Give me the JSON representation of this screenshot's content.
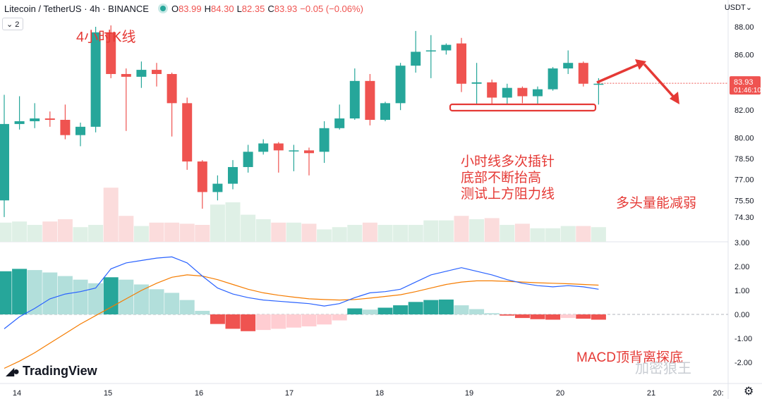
{
  "header": {
    "symbol_line": "Litecoin / TetherUS · 4h · BINANCE",
    "open_key": "O",
    "open": "83.99",
    "high_key": "H",
    "high": "84.30",
    "low_key": "L",
    "low": "82.35",
    "close_key": "C",
    "close": "83.93",
    "change": "−0.05 (−0.06%)"
  },
  "indicator_badge": "⌄ 2",
  "currency": "USDT⌄",
  "price_tag": {
    "price": "83.93",
    "countdown": "01:46:10"
  },
  "annotations": {
    "timeframe_note": "4小时K线",
    "pin_note_lines": [
      "小时线多次插针",
      "底部不断抬高",
      "测试上方阻力线"
    ],
    "volume_note": "多头量能减弱",
    "macd_note": "MACD顶背离探底"
  },
  "branding": {
    "logo": "TradingView",
    "watermark": "加密狼王"
  },
  "icons": {
    "logo_mark": "tradingview-logo-icon",
    "settings": "gear-icon"
  },
  "colors": {
    "up": "#26a69a",
    "down": "#ef5350",
    "macd_line": "#2962ff",
    "signal_line": "#f57c00",
    "annotation": "#e53935"
  },
  "chart_data": [
    {
      "type": "candlestick",
      "title": "Litecoin / TetherUS · 4h · BINANCE",
      "x_ticks": [
        "14",
        "15",
        "16",
        "17",
        "18",
        "19",
        "20",
        "21",
        "20:"
      ],
      "y_ticks": [
        "88.00",
        "86.00",
        "82.00",
        "80.00",
        "78.50",
        "77.00",
        "75.50",
        "74.30"
      ],
      "last_price": 83.93,
      "candles": [
        {
          "o": 75.5,
          "h": 83.1,
          "l": 74.3,
          "c": 81.0
        },
        {
          "o": 81.0,
          "h": 83.0,
          "l": 80.6,
          "c": 81.2
        },
        {
          "o": 81.2,
          "h": 82.5,
          "l": 80.7,
          "c": 81.4
        },
        {
          "o": 81.4,
          "h": 81.9,
          "l": 80.8,
          "c": 81.3
        },
        {
          "o": 81.3,
          "h": 82.4,
          "l": 79.9,
          "c": 80.2
        },
        {
          "o": 80.2,
          "h": 81.1,
          "l": 79.4,
          "c": 80.8
        },
        {
          "o": 80.8,
          "h": 88.0,
          "l": 80.4,
          "c": 87.6
        },
        {
          "o": 87.6,
          "h": 88.1,
          "l": 84.3,
          "c": 84.6
        },
        {
          "o": 84.6,
          "h": 85.0,
          "l": 80.5,
          "c": 84.4
        },
        {
          "o": 84.4,
          "h": 85.5,
          "l": 83.6,
          "c": 84.9
        },
        {
          "o": 84.9,
          "h": 85.4,
          "l": 83.7,
          "c": 84.6
        },
        {
          "o": 84.6,
          "h": 84.7,
          "l": 80.1,
          "c": 82.5
        },
        {
          "o": 82.5,
          "h": 82.9,
          "l": 77.7,
          "c": 78.3
        },
        {
          "o": 78.3,
          "h": 78.4,
          "l": 74.9,
          "c": 76.1
        },
        {
          "o": 76.1,
          "h": 77.3,
          "l": 75.5,
          "c": 76.7
        },
        {
          "o": 76.7,
          "h": 78.4,
          "l": 76.3,
          "c": 77.9
        },
        {
          "o": 77.9,
          "h": 79.5,
          "l": 77.5,
          "c": 79.0
        },
        {
          "o": 79.0,
          "h": 79.9,
          "l": 78.8,
          "c": 79.6
        },
        {
          "o": 79.6,
          "h": 79.7,
          "l": 77.5,
          "c": 79.1
        },
        {
          "o": 79.1,
          "h": 79.5,
          "l": 77.6,
          "c": 79.1
        },
        {
          "o": 79.1,
          "h": 79.3,
          "l": 77.3,
          "c": 78.9
        },
        {
          "o": 79.0,
          "h": 81.2,
          "l": 78.2,
          "c": 80.7
        },
        {
          "o": 80.7,
          "h": 82.4,
          "l": 80.6,
          "c": 81.4
        },
        {
          "o": 81.4,
          "h": 85.0,
          "l": 81.3,
          "c": 84.1
        },
        {
          "o": 84.1,
          "h": 84.6,
          "l": 80.9,
          "c": 81.3
        },
        {
          "o": 81.3,
          "h": 82.6,
          "l": 81.2,
          "c": 82.5
        },
        {
          "o": 82.5,
          "h": 85.4,
          "l": 82.0,
          "c": 85.2
        },
        {
          "o": 85.2,
          "h": 87.7,
          "l": 84.7,
          "c": 86.2
        },
        {
          "o": 86.3,
          "h": 87.4,
          "l": 84.3,
          "c": 86.3
        },
        {
          "o": 86.3,
          "h": 86.8,
          "l": 86.0,
          "c": 86.7
        },
        {
          "o": 86.8,
          "h": 87.2,
          "l": 83.3,
          "c": 83.9
        },
        {
          "o": 83.9,
          "h": 85.4,
          "l": 82.4,
          "c": 84.0
        },
        {
          "o": 84.0,
          "h": 84.2,
          "l": 82.4,
          "c": 82.9
        },
        {
          "o": 82.9,
          "h": 83.9,
          "l": 82.4,
          "c": 83.6
        },
        {
          "o": 83.6,
          "h": 83.7,
          "l": 82.5,
          "c": 83.0
        },
        {
          "o": 83.0,
          "h": 83.7,
          "l": 82.4,
          "c": 83.5
        },
        {
          "o": 83.5,
          "h": 85.1,
          "l": 83.4,
          "c": 85.0
        },
        {
          "o": 85.0,
          "h": 86.3,
          "l": 84.6,
          "c": 85.4
        },
        {
          "o": 85.4,
          "h": 85.5,
          "l": 83.7,
          "c": 83.9
        },
        {
          "o": 83.9,
          "h": 84.3,
          "l": 82.4,
          "c": 83.9
        }
      ],
      "volume": [
        17,
        18,
        15,
        18,
        20,
        13,
        15,
        48,
        23,
        14,
        17,
        17,
        16,
        15,
        33,
        35,
        24,
        20,
        17,
        17,
        16,
        11,
        13,
        15,
        17,
        15,
        15,
        15,
        19,
        19,
        23,
        20,
        21,
        15,
        16,
        12,
        12,
        14,
        14,
        13
      ]
    },
    {
      "type": "bar",
      "title": "MACD",
      "y_ticks": [
        "3.00",
        "2.00",
        "1.00",
        "0.00",
        "-1.00",
        "-2.00"
      ],
      "histogram": [
        1.8,
        1.9,
        1.85,
        1.75,
        1.6,
        1.45,
        1.3,
        1.55,
        1.45,
        1.25,
        1.05,
        0.9,
        0.6,
        0.15,
        -0.4,
        -0.6,
        -0.7,
        -0.65,
        -0.6,
        -0.55,
        -0.5,
        -0.42,
        -0.25,
        0.25,
        0.2,
        0.28,
        0.38,
        0.52,
        0.6,
        0.62,
        0.38,
        0.22,
        0.05,
        -0.05,
        -0.15,
        -0.2,
        -0.22,
        -0.15,
        -0.18,
        -0.22
      ],
      "macd_line": [
        -0.6,
        -0.1,
        0.25,
        0.65,
        0.85,
        0.95,
        1.1,
        1.9,
        2.15,
        2.25,
        2.35,
        2.4,
        2.15,
        1.6,
        1.1,
        0.85,
        0.7,
        0.6,
        0.55,
        0.5,
        0.45,
        0.35,
        0.45,
        0.7,
        0.9,
        0.95,
        1.05,
        1.35,
        1.65,
        1.8,
        1.95,
        1.8,
        1.65,
        1.45,
        1.3,
        1.2,
        1.15,
        1.2,
        1.15,
        1.05
      ],
      "signal_line": [
        -2.25,
        -1.95,
        -1.6,
        -1.2,
        -0.8,
        -0.4,
        -0.05,
        0.3,
        0.65,
        1.0,
        1.3,
        1.55,
        1.65,
        1.6,
        1.45,
        1.25,
        1.05,
        0.9,
        0.8,
        0.72,
        0.65,
        0.62,
        0.6,
        0.62,
        0.68,
        0.75,
        0.82,
        0.95,
        1.1,
        1.25,
        1.35,
        1.4,
        1.4,
        1.38,
        1.35,
        1.32,
        1.3,
        1.28,
        1.25,
        1.22
      ]
    }
  ]
}
